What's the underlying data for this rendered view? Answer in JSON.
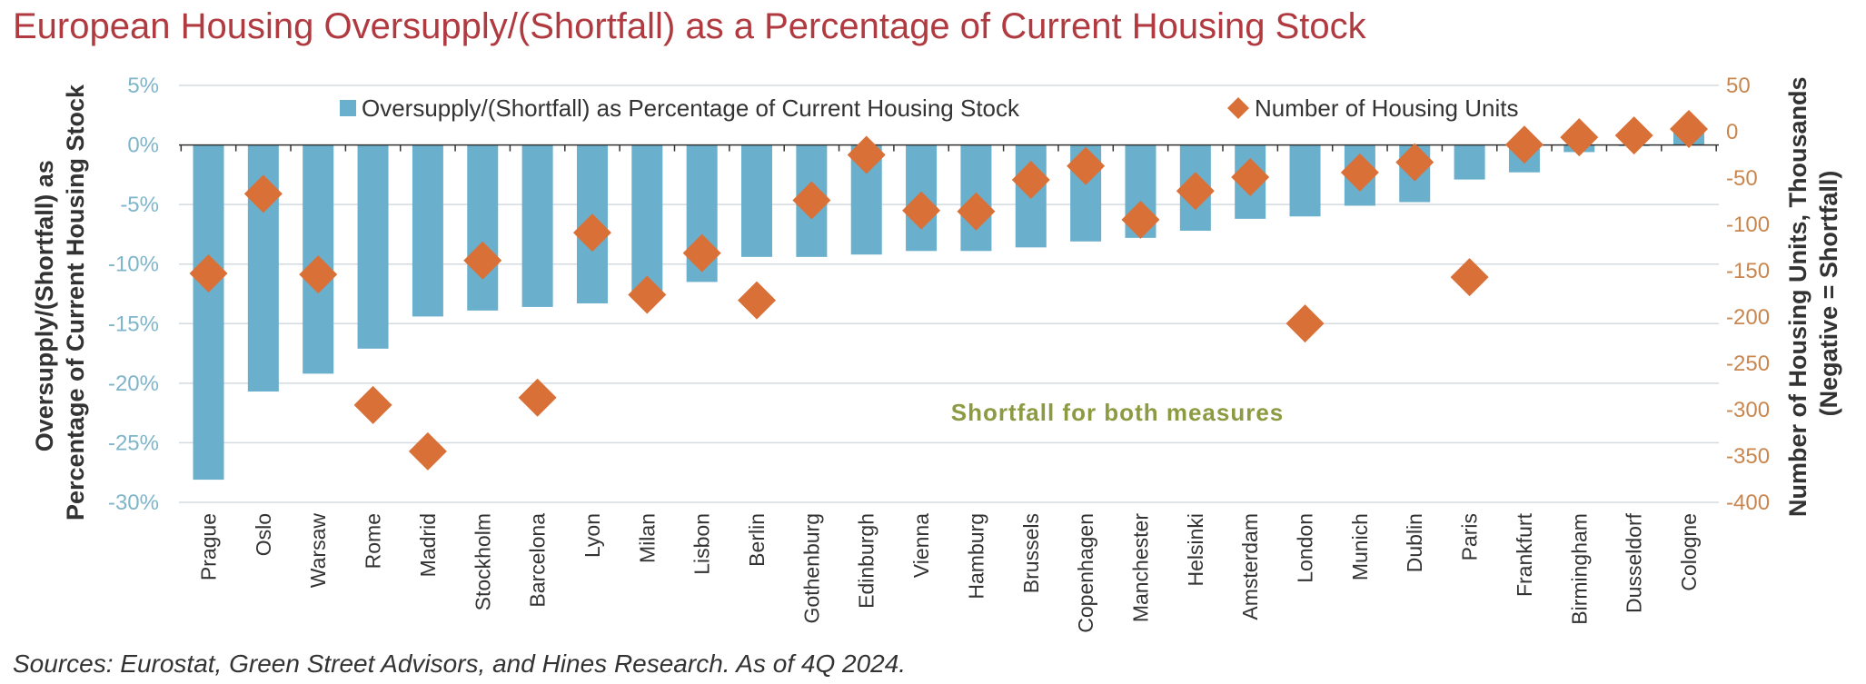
{
  "title": "European Housing Oversupply/(Shortfall) as a Percentage of Current Housing Stock",
  "source": "Sources: Eurostat, Green Street Advisors, and Hines Research. As of 4Q 2024.",
  "annotation": "Shortfall for both measures",
  "colors": {
    "title": "#b03a40",
    "bar": "#6aafcc",
    "marker": "#d97038",
    "left_tick": "#7fb5c9",
    "right_tick": "#c9874f",
    "annotation": "#8c9a42",
    "grid": "#d3dbe0",
    "axis_title": "#333333",
    "source": "#333333"
  },
  "chart_data": {
    "type": "bar",
    "title": "European Housing Oversupply/(Shortfall) as a Percentage of Current Housing Stock",
    "ylabel": "Oversupply/(Shortfall) as Percentage of Current Housing Stock",
    "ylabel_lines": [
      "Oversupply/(Shortfall) as",
      "Percentage of Current Housing Stock"
    ],
    "y2label": "Number of Housing Units, Thousands (Negative = Shortfall)",
    "y2label_lines": [
      "Number of Housing Units, Thousands",
      "(Negative = Shortfall)"
    ],
    "ylim": [
      -30,
      5
    ],
    "y2lim": [
      -400,
      50
    ],
    "y_ticks": [
      5,
      0,
      -5,
      -10,
      -15,
      -20,
      -25,
      -30
    ],
    "y_tick_labels": [
      "5%",
      "0%",
      "-5%",
      "-10%",
      "-15%",
      "-20%",
      "-25%",
      "-30%"
    ],
    "y2_ticks": [
      50,
      0,
      -50,
      -100,
      -150,
      -200,
      -250,
      -300,
      -350,
      -400
    ],
    "y2_tick_labels": [
      "50",
      "0",
      "-50",
      "-100",
      "-150",
      "-200",
      "-250",
      "-300",
      "-350",
      "-400"
    ],
    "grid": true,
    "legend_position": "top",
    "categories": [
      "Prague",
      "Oslo",
      "Warsaw",
      "Rome",
      "Madrid",
      "Stockholm",
      "Barcelona",
      "Lyon",
      "Milan",
      "Lisbon",
      "Berlin",
      "Gothenburg",
      "Edinburgh",
      "Vienna",
      "Hamburg",
      "Brussels",
      "Copenhagen",
      "Manchester",
      "Helsinki",
      "Amsterdam",
      "London",
      "Munich",
      "Dublin",
      "Paris",
      "Frankfurt",
      "Birmingham",
      "Dusseldorf",
      "Cologne"
    ],
    "series": [
      {
        "name": "Oversupply/(Shortfall) as Percentage of Current Housing Stock",
        "type": "bar",
        "axis": "left",
        "values": [
          -28.1,
          -20.7,
          -19.2,
          -17.1,
          -14.4,
          -13.9,
          -13.6,
          -13.3,
          -12.8,
          -11.5,
          -9.4,
          -9.4,
          -9.2,
          -8.9,
          -8.9,
          -8.6,
          -8.1,
          -7.8,
          -7.2,
          -6.2,
          -6.0,
          -5.1,
          -4.8,
          -2.9,
          -2.3,
          -0.6,
          -0.1,
          1.3
        ]
      },
      {
        "name": "Number of Housing Units",
        "type": "scatter",
        "axis": "right",
        "values": [
          -153,
          -67,
          -154,
          -295,
          -345,
          -139,
          -287,
          -109,
          -176,
          -131,
          -182,
          -74,
          -25,
          -85,
          -86,
          -52,
          -37,
          -95,
          -64,
          -49,
          -207,
          -44,
          -33,
          -157,
          -14,
          -6,
          -4,
          3
        ]
      }
    ]
  }
}
